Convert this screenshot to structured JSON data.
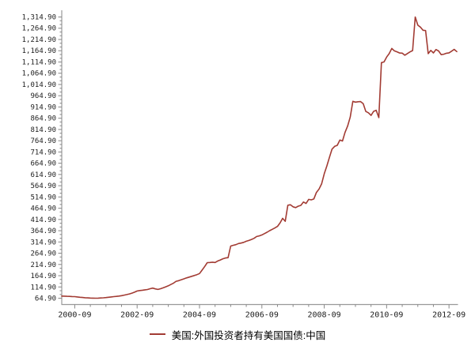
{
  "legend": {
    "label": "美国:外国投资者持有美国国债:中国"
  },
  "chart_data": {
    "type": "line",
    "title": "",
    "xlabel": "",
    "ylabel": "",
    "grid": false,
    "legend_position": "bottom",
    "series_name": "美国:外国投资者持有美国国债:中国",
    "line_color": "#A23B33",
    "axis_color": "#999999",
    "tick_color": "#888888",
    "ylim": [
      64.9,
      1314.9
    ],
    "y_tick_step": 50,
    "y_tick_labels": [
      "1,314.90",
      "1,264.90",
      "1,214.90",
      "1,164.90",
      "1,114.90",
      "1,064.90",
      "1,014.90",
      "964.90",
      "914.90",
      "864.90",
      "814.90",
      "764.90",
      "714.90",
      "664.90",
      "614.90",
      "564.90",
      "514.90",
      "464.90",
      "414.90",
      "364.90",
      "314.90",
      "264.90",
      "214.90",
      "164.90",
      "114.90",
      "64.90"
    ],
    "x_ticks": [
      "2000-09",
      "2002-09",
      "2004-09",
      "2006-09",
      "2008-09",
      "2010-09",
      "2012-09"
    ],
    "x_minor_tick_months": 6,
    "start_month": "2000-04",
    "end_month": "2012-12",
    "frequency": "monthly",
    "values": [
      74.5,
      74.0,
      73.4,
      72.9,
      72.4,
      72.0,
      70.5,
      69.2,
      68.1,
      67.0,
      66.2,
      65.6,
      65.1,
      64.9,
      65.2,
      65.8,
      66.7,
      67.8,
      69.0,
      70.4,
      71.8,
      73.0,
      74.5,
      76.2,
      78.5,
      81.0,
      84.0,
      87.5,
      91.5,
      96.9,
      99.0,
      100.5,
      102.0,
      103.5,
      107.0,
      110.0,
      106.5,
      104.0,
      107.0,
      111.0,
      115.5,
      120.0,
      126.0,
      132.0,
      140.0,
      143.0,
      147.0,
      151.0,
      155.0,
      158.5,
      162.0,
      165.5,
      169.5,
      174.4,
      190.0,
      206.0,
      222.9,
      223.5,
      224.9,
      223.5,
      230.4,
      235.0,
      240.0,
      243.5,
      245.0,
      296.8,
      300.0,
      303.0,
      308.0,
      310.0,
      313.0,
      318.0,
      321.4,
      326.0,
      331.0,
      339.1,
      342.0,
      346.0,
      352.0,
      358.0,
      365.0,
      371.0,
      377.0,
      384.0,
      400.0,
      420.0,
      407.0,
      478.0,
      480.2,
      471.0,
      467.7,
      474.0,
      477.6,
      492.6,
      486.0,
      504.0,
      502.0,
      506.0,
      535.1,
      550.0,
      573.7,
      618.2,
      652.9,
      690.7,
      727.4,
      739.6,
      744.2,
      767.9,
      763.5,
      801.5,
      830.0,
      870.0,
      939.9,
      936.5,
      938.3,
      938.9,
      929.8,
      894.8,
      889.0,
      877.5,
      895.2,
      900.2,
      867.7,
      1112.1,
      1115.1,
      1136.8,
      1151.9,
      1175.3,
      1164.1,
      1160.1,
      1154.7,
      1154.1,
      1144.9,
      1152.5,
      1159.8,
      1165.5,
      1314.9,
      1278.5,
      1269.9,
      1256.0,
      1254.6,
      1151.9,
      1166.2,
      1155.2,
      1170.3,
      1164.0,
      1147.3,
      1149.5,
      1153.6,
      1155.6,
      1163.0,
      1171.0,
      1161.0
    ]
  }
}
